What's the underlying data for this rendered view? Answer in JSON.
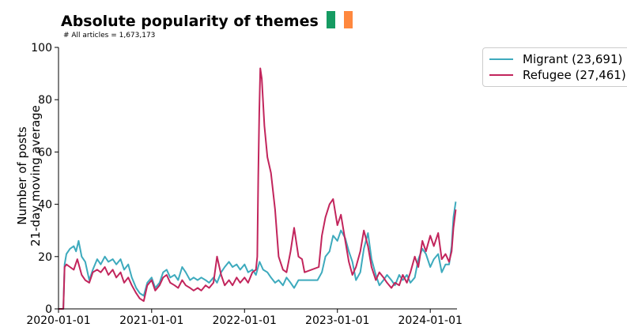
{
  "header": {
    "title": "Absolute popularity of themes",
    "subtitle": "# All articles = 1,673,173"
  },
  "flag_colors": [
    "#169B62",
    "#FFFFFF",
    "#FF883E"
  ],
  "chart_data": {
    "type": "line",
    "title": "Absolute popularity of themes",
    "subtitle": "# All articles = 1,673,173",
    "xlabel": "",
    "ylabel": "Number of posts\n21-day moving average",
    "xlim": [
      "2020-01-01",
      "2024-04-15"
    ],
    "ylim": [
      0,
      100
    ],
    "y_ticks": [
      0,
      20,
      40,
      60,
      80,
      100
    ],
    "x_ticks": [
      "2020-01-01",
      "2021-01-01",
      "2022-01-01",
      "2023-01-01",
      "2024-01-01"
    ],
    "grid": false,
    "legend_position": "outside-top-right",
    "series": [
      {
        "name": "Migrant (23,691)",
        "color": "#3DAABD",
        "points": [
          [
            "2020-01-01",
            0
          ],
          [
            "2020-01-20",
            0
          ],
          [
            "2020-01-25",
            17
          ],
          [
            "2020-02-01",
            21
          ],
          [
            "2020-02-15",
            23
          ],
          [
            "2020-03-01",
            24
          ],
          [
            "2020-03-10",
            22
          ],
          [
            "2020-03-20",
            26
          ],
          [
            "2020-04-01",
            20
          ],
          [
            "2020-04-15",
            18
          ],
          [
            "2020-05-01",
            11
          ],
          [
            "2020-05-15",
            15
          ],
          [
            "2020-06-01",
            19
          ],
          [
            "2020-06-15",
            17
          ],
          [
            "2020-07-01",
            20
          ],
          [
            "2020-07-15",
            18
          ],
          [
            "2020-08-01",
            19
          ],
          [
            "2020-08-15",
            17
          ],
          [
            "2020-09-01",
            19
          ],
          [
            "2020-09-15",
            15
          ],
          [
            "2020-10-01",
            17
          ],
          [
            "2020-10-15",
            12
          ],
          [
            "2020-11-01",
            8
          ],
          [
            "2020-11-15",
            6
          ],
          [
            "2020-12-01",
            5
          ],
          [
            "2020-12-15",
            10
          ],
          [
            "2021-01-01",
            12
          ],
          [
            "2021-01-15",
            8
          ],
          [
            "2021-02-01",
            10
          ],
          [
            "2021-02-15",
            14
          ],
          [
            "2021-03-01",
            15
          ],
          [
            "2021-03-15",
            12
          ],
          [
            "2021-04-01",
            13
          ],
          [
            "2021-04-15",
            11
          ],
          [
            "2021-05-01",
            16
          ],
          [
            "2021-05-15",
            14
          ],
          [
            "2021-06-01",
            11
          ],
          [
            "2021-06-15",
            12
          ],
          [
            "2021-07-01",
            11
          ],
          [
            "2021-07-15",
            12
          ],
          [
            "2021-08-01",
            11
          ],
          [
            "2021-08-15",
            10
          ],
          [
            "2021-09-01",
            12
          ],
          [
            "2021-09-15",
            10
          ],
          [
            "2021-10-01",
            14
          ],
          [
            "2021-10-15",
            16
          ],
          [
            "2021-11-01",
            18
          ],
          [
            "2021-11-15",
            16
          ],
          [
            "2021-12-01",
            17
          ],
          [
            "2021-12-15",
            15
          ],
          [
            "2022-01-01",
            17
          ],
          [
            "2022-01-15",
            14
          ],
          [
            "2022-02-01",
            15
          ],
          [
            "2022-02-15",
            13
          ],
          [
            "2022-03-01",
            18
          ],
          [
            "2022-03-15",
            15
          ],
          [
            "2022-04-01",
            14
          ],
          [
            "2022-04-15",
            12
          ],
          [
            "2022-05-01",
            10
          ],
          [
            "2022-05-15",
            11
          ],
          [
            "2022-06-01",
            9
          ],
          [
            "2022-06-15",
            12
          ],
          [
            "2022-07-01",
            10
          ],
          [
            "2022-07-15",
            8
          ],
          [
            "2022-08-01",
            11
          ],
          [
            "2022-08-15",
            11
          ],
          [
            "2022-10-15",
            11
          ],
          [
            "2022-11-01",
            14
          ],
          [
            "2022-11-15",
            20
          ],
          [
            "2022-12-01",
            22
          ],
          [
            "2022-12-15",
            28
          ],
          [
            "2023-01-01",
            26
          ],
          [
            "2023-01-15",
            30
          ],
          [
            "2023-02-01",
            27
          ],
          [
            "2023-02-15",
            22
          ],
          [
            "2023-03-01",
            18
          ],
          [
            "2023-03-15",
            11
          ],
          [
            "2023-04-01",
            14
          ],
          [
            "2023-04-15",
            23
          ],
          [
            "2023-05-01",
            29
          ],
          [
            "2023-05-15",
            19
          ],
          [
            "2023-06-01",
            13
          ],
          [
            "2023-06-15",
            9
          ],
          [
            "2023-07-01",
            11
          ],
          [
            "2023-07-15",
            13
          ],
          [
            "2023-08-01",
            11
          ],
          [
            "2023-08-15",
            9
          ],
          [
            "2023-09-01",
            13
          ],
          [
            "2023-09-15",
            11
          ],
          [
            "2023-10-01",
            13
          ],
          [
            "2023-10-15",
            10
          ],
          [
            "2023-11-01",
            12
          ],
          [
            "2023-11-15",
            19
          ],
          [
            "2023-12-01",
            23
          ],
          [
            "2023-12-15",
            21
          ],
          [
            "2024-01-01",
            16
          ],
          [
            "2024-01-15",
            19
          ],
          [
            "2024-02-01",
            21
          ],
          [
            "2024-02-15",
            14
          ],
          [
            "2024-03-01",
            17
          ],
          [
            "2024-03-15",
            17
          ],
          [
            "2024-03-25",
            24
          ],
          [
            "2024-04-01",
            35
          ],
          [
            "2024-04-10",
            41
          ]
        ]
      },
      {
        "name": "Refugee (27,461)",
        "color": "#C2255C",
        "points": [
          [
            "2020-01-01",
            0
          ],
          [
            "2020-01-20",
            0
          ],
          [
            "2020-01-25",
            16
          ],
          [
            "2020-02-01",
            17
          ],
          [
            "2020-02-15",
            16
          ],
          [
            "2020-03-01",
            15
          ],
          [
            "2020-03-15",
            19
          ],
          [
            "2020-04-01",
            13
          ],
          [
            "2020-04-15",
            11
          ],
          [
            "2020-05-01",
            10
          ],
          [
            "2020-05-15",
            14
          ],
          [
            "2020-06-01",
            15
          ],
          [
            "2020-06-15",
            14
          ],
          [
            "2020-07-01",
            16
          ],
          [
            "2020-07-15",
            13
          ],
          [
            "2020-08-01",
            15
          ],
          [
            "2020-08-15",
            12
          ],
          [
            "2020-09-01",
            14
          ],
          [
            "2020-09-15",
            10
          ],
          [
            "2020-10-01",
            12
          ],
          [
            "2020-10-15",
            9
          ],
          [
            "2020-11-01",
            6
          ],
          [
            "2020-11-15",
            4
          ],
          [
            "2020-12-01",
            3
          ],
          [
            "2020-12-15",
            9
          ],
          [
            "2021-01-01",
            11
          ],
          [
            "2021-01-15",
            7
          ],
          [
            "2021-02-01",
            9
          ],
          [
            "2021-02-15",
            12
          ],
          [
            "2021-03-01",
            13
          ],
          [
            "2021-03-15",
            10
          ],
          [
            "2021-04-01",
            9
          ],
          [
            "2021-04-15",
            8
          ],
          [
            "2021-05-01",
            11
          ],
          [
            "2021-05-15",
            9
          ],
          [
            "2021-06-01",
            8
          ],
          [
            "2021-06-15",
            7
          ],
          [
            "2021-07-01",
            8
          ],
          [
            "2021-07-15",
            7
          ],
          [
            "2021-08-01",
            9
          ],
          [
            "2021-08-15",
            8
          ],
          [
            "2021-09-01",
            10
          ],
          [
            "2021-09-15",
            20
          ],
          [
            "2021-10-01",
            13
          ],
          [
            "2021-10-15",
            9
          ],
          [
            "2021-11-01",
            11
          ],
          [
            "2021-11-15",
            9
          ],
          [
            "2021-12-01",
            12
          ],
          [
            "2021-12-15",
            10
          ],
          [
            "2022-01-01",
            12
          ],
          [
            "2022-01-15",
            10
          ],
          [
            "2022-02-01",
            14
          ],
          [
            "2022-02-15",
            15
          ],
          [
            "2022-02-20",
            20
          ],
          [
            "2022-02-24",
            50
          ],
          [
            "2022-02-28",
            75
          ],
          [
            "2022-03-04",
            92
          ],
          [
            "2022-03-10",
            88
          ],
          [
            "2022-03-20",
            70
          ],
          [
            "2022-04-01",
            58
          ],
          [
            "2022-04-15",
            52
          ],
          [
            "2022-05-01",
            38
          ],
          [
            "2022-05-15",
            20
          ],
          [
            "2022-06-01",
            15
          ],
          [
            "2022-06-15",
            14
          ],
          [
            "2022-07-01",
            22
          ],
          [
            "2022-07-15",
            31
          ],
          [
            "2022-08-01",
            20
          ],
          [
            "2022-08-15",
            19
          ],
          [
            "2022-08-25",
            14
          ],
          [
            "2022-10-20",
            16
          ],
          [
            "2022-11-01",
            28
          ],
          [
            "2022-11-15",
            35
          ],
          [
            "2022-12-01",
            40
          ],
          [
            "2022-12-15",
            42
          ],
          [
            "2023-01-01",
            32
          ],
          [
            "2023-01-15",
            36
          ],
          [
            "2023-02-01",
            26
          ],
          [
            "2023-02-15",
            18
          ],
          [
            "2023-03-01",
            13
          ],
          [
            "2023-03-15",
            16
          ],
          [
            "2023-04-01",
            22
          ],
          [
            "2023-04-15",
            30
          ],
          [
            "2023-05-01",
            24
          ],
          [
            "2023-05-15",
            16
          ],
          [
            "2023-06-01",
            11
          ],
          [
            "2023-06-15",
            14
          ],
          [
            "2023-07-01",
            12
          ],
          [
            "2023-07-15",
            10
          ],
          [
            "2023-08-01",
            8
          ],
          [
            "2023-08-15",
            10
          ],
          [
            "2023-09-01",
            9
          ],
          [
            "2023-09-15",
            13
          ],
          [
            "2023-10-01",
            10
          ],
          [
            "2023-10-15",
            14
          ],
          [
            "2023-11-01",
            20
          ],
          [
            "2023-11-15",
            16
          ],
          [
            "2023-12-01",
            26
          ],
          [
            "2023-12-15",
            22
          ],
          [
            "2024-01-01",
            28
          ],
          [
            "2024-01-15",
            24
          ],
          [
            "2024-02-01",
            29
          ],
          [
            "2024-02-15",
            19
          ],
          [
            "2024-03-01",
            21
          ],
          [
            "2024-03-15",
            18
          ],
          [
            "2024-03-25",
            22
          ],
          [
            "2024-04-01",
            31
          ],
          [
            "2024-04-10",
            38
          ]
        ]
      }
    ]
  }
}
